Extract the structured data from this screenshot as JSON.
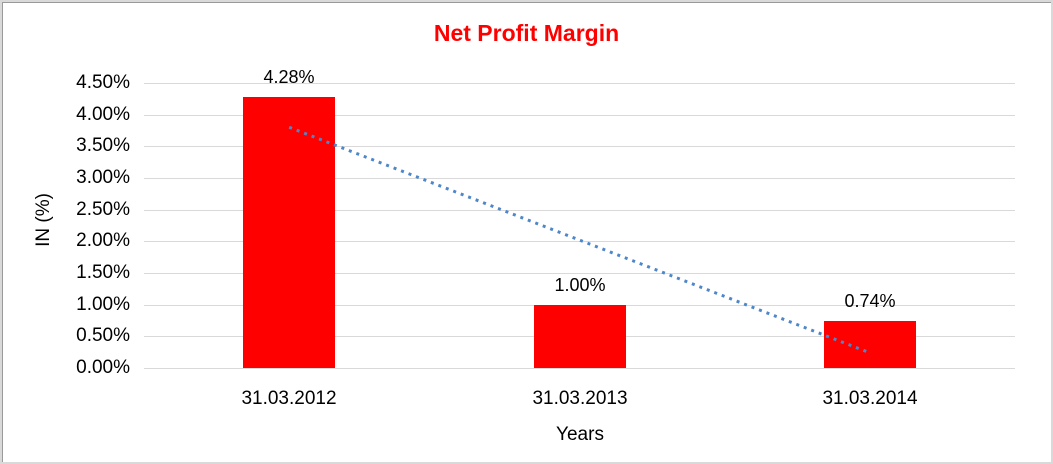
{
  "chart_data": {
    "type": "bar",
    "title": "Net Profit Margin",
    "xlabel": "Years",
    "ylabel": "IN (%)",
    "categories": [
      "31.03.2012",
      "31.03.2013",
      "31.03.2014"
    ],
    "values": [
      4.28,
      1.0,
      0.74
    ],
    "value_labels": [
      "4.28%",
      "1.00%",
      "0.74%"
    ],
    "ylim": [
      0,
      4.5
    ],
    "ytick_values": [
      4.5,
      4.0,
      3.5,
      3.0,
      2.5,
      2.0,
      1.5,
      1.0,
      0.5,
      0.0
    ],
    "ytick_labels": [
      "4.50%",
      "4.00%",
      "3.50%",
      "3.00%",
      "2.50%",
      "2.00%",
      "1.50%",
      "1.00%",
      "0.50%",
      "0.00%"
    ],
    "grid": true,
    "legend": "none",
    "colors": {
      "bar": "#ff0000",
      "title": "#ff0000",
      "gridline": "#d9d9d9",
      "tick_text": "#000000",
      "trendline": "#4e87c9",
      "frame_outer": "#d9d9d9",
      "frame_inner": "#9a9a9a"
    },
    "trendline": {
      "type": "linear",
      "style": "dotted",
      "start_value": 3.8,
      "end_value": 0.24
    }
  }
}
